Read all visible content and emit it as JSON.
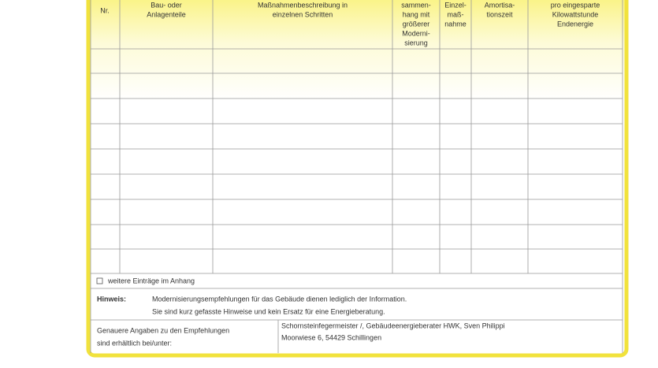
{
  "header": {
    "columns": [
      {
        "lines": [
          "Nr."
        ]
      },
      {
        "lines": [
          "Bau- oder",
          "Anlagenteile"
        ]
      },
      {
        "lines": [
          "Maßnahmenbeschreibung in",
          "einzelnen Schritten"
        ]
      },
      {
        "lines": [
          "sammen-",
          "hang mit",
          "größerer",
          "Moderni-",
          "sierung"
        ]
      },
      {
        "lines": [
          "Einzel-",
          "maß-",
          "nahme"
        ]
      },
      {
        "lines": [
          "Amortisa-",
          "tionszeit"
        ]
      },
      {
        "lines": [
          "pro eingesparte",
          "Kilowattstunde",
          "Endenergie"
        ]
      }
    ]
  },
  "more_entries": "weitere Einträge im Anhang",
  "note": {
    "label": "Hinweis:",
    "lines": [
      "Modernisierungsempfehlungen für das Gebäude dienen lediglich der Information.",
      "Sie sind kurz gefasste Hinweise und kein Ersatz für eine Energieberatung."
    ]
  },
  "contact": {
    "label_lines": [
      "Genauere Angaben zu den Empfehlungen",
      "sind erhältlich bei/unter:"
    ],
    "lines": [
      "Schornsteinfegermeister /, Gebäudeenergieberater HWK, Sven Philippi",
      "Moorwiese 6, 54429 Schillingen"
    ]
  }
}
